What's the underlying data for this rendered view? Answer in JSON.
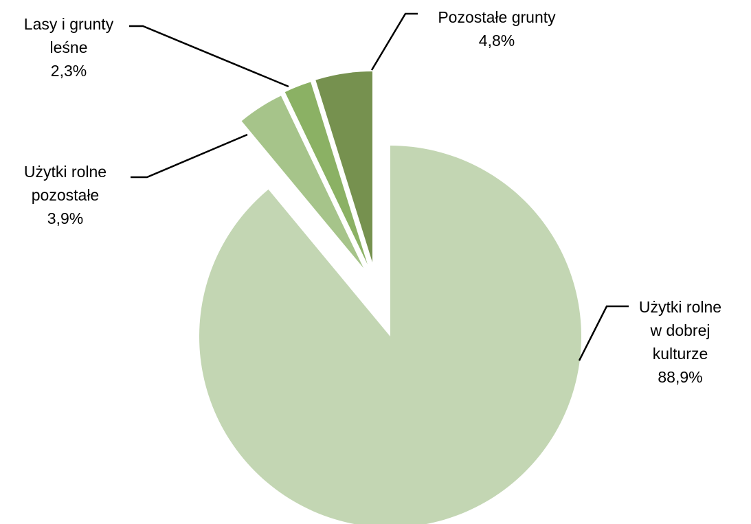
{
  "chart_data": {
    "type": "pie",
    "title": "",
    "slices": [
      {
        "name_lines": [
          "Użytki rolne",
          "w dobrej",
          "kulturze"
        ],
        "value": 88.9,
        "value_label": "88,9%",
        "color": "#c3d6b3",
        "exploded": false
      },
      {
        "name_lines": [
          "Użytki rolne",
          "pozostałe"
        ],
        "value": 3.9,
        "value_label": "3,9%",
        "color": "#a6c48a",
        "exploded": true
      },
      {
        "name_lines": [
          "Lasy i grunty",
          "leśne"
        ],
        "value": 2.3,
        "value_label": "2,3%",
        "color": "#8bb164",
        "exploded": true
      },
      {
        "name_lines": [
          "Pozostałe grunty"
        ],
        "value": 4.8,
        "value_label": "4,8%",
        "color": "#76914f",
        "exploded": true
      }
    ],
    "legend": "none",
    "labels": "outside with leader lines"
  }
}
